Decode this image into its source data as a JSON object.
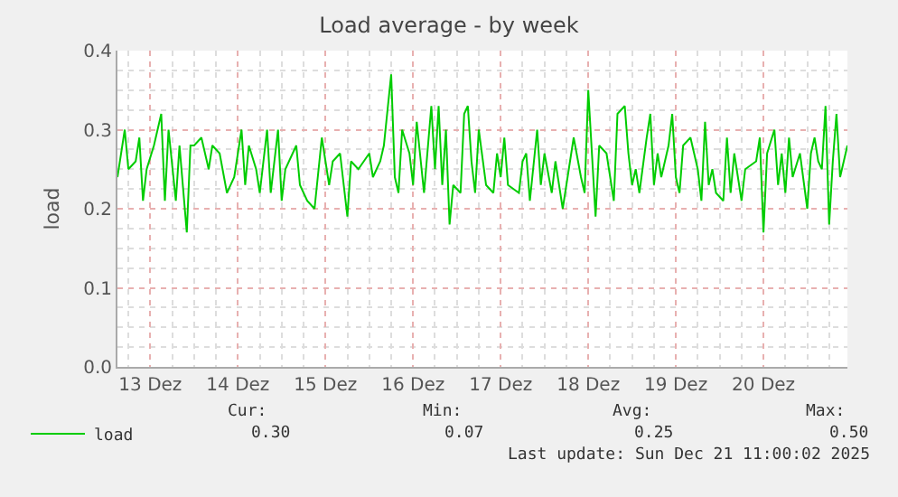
{
  "chart_data": {
    "type": "line",
    "title": "Load average - by week",
    "ylabel": "load",
    "x": [
      "2025-12-13T03:00",
      "2025-12-13T05:00",
      "2025-12-13T06:00",
      "2025-12-13T08:00",
      "2025-12-13T09:00",
      "2025-12-13T10:00",
      "2025-12-13T11:00",
      "2025-12-13T13:00",
      "2025-12-13T15:00",
      "2025-12-13T16:00",
      "2025-12-13T17:00",
      "2025-12-13T19:00",
      "2025-12-13T20:00",
      "2025-12-13T22:00",
      "2025-12-13T23:00",
      "2025-12-14T00:00",
      "2025-12-14T02:00",
      "2025-12-14T04:00",
      "2025-12-14T05:00",
      "2025-12-14T07:00",
      "2025-12-14T09:00",
      "2025-12-14T11:00",
      "2025-12-14T13:00",
      "2025-12-14T14:00",
      "2025-12-14T15:00",
      "2025-12-14T17:00",
      "2025-12-14T18:00",
      "2025-12-14T20:00",
      "2025-12-14T21:00",
      "2025-12-14T23:00",
      "2025-12-15T00:00",
      "2025-12-15T01:00",
      "2025-12-15T04:00",
      "2025-12-15T05:00",
      "2025-12-15T07:00",
      "2025-12-15T09:00",
      "2025-12-15T11:00",
      "2025-12-15T13:00",
      "2025-12-15T14:00",
      "2025-12-15T16:00",
      "2025-12-15T18:00",
      "2025-12-15T19:00",
      "2025-12-15T21:00",
      "2025-12-16T00:00",
      "2025-12-16T01:00",
      "2025-12-16T03:00",
      "2025-12-16T04:00",
      "2025-12-16T06:00",
      "2025-12-16T07:00",
      "2025-12-16T08:00",
      "2025-12-16T09:00",
      "2025-12-16T11:00",
      "2025-12-16T12:00",
      "2025-12-16T13:00",
      "2025-12-16T15:00",
      "2025-12-16T17:00",
      "2025-12-16T18:00",
      "2025-12-16T19:00",
      "2025-12-16T20:00",
      "2025-12-16T21:00",
      "2025-12-16T22:00",
      "2025-12-16T23:00",
      "2025-12-17T01:00",
      "2025-12-17T02:00",
      "2025-12-17T03:00",
      "2025-12-17T04:00",
      "2025-12-17T05:00",
      "2025-12-17T06:00",
      "2025-12-17T08:00",
      "2025-12-17T10:00",
      "2025-12-17T11:00",
      "2025-12-17T12:00",
      "2025-12-17T13:00",
      "2025-12-17T14:00",
      "2025-12-17T17:00",
      "2025-12-17T18:00",
      "2025-12-17T19:00",
      "2025-12-17T20:00",
      "2025-12-17T22:00",
      "2025-12-17T23:00",
      "2025-12-18T00:00",
      "2025-12-18T02:00",
      "2025-12-18T03:00",
      "2025-12-18T05:00",
      "2025-12-18T06:00",
      "2025-12-18T08:00",
      "2025-12-18T10:00",
      "2025-12-18T11:00",
      "2025-12-18T12:00",
      "2025-12-18T14:00",
      "2025-12-18T15:00",
      "2025-12-18T17:00",
      "2025-12-18T19:00",
      "2025-12-18T20:00",
      "2025-12-18T22:00",
      "2025-12-18T23:00",
      "2025-12-19T00:00",
      "2025-12-19T01:00",
      "2025-12-19T02:00",
      "2025-12-19T04:00",
      "2025-12-19T05:00",
      "2025-12-19T06:00",
      "2025-12-19T07:00",
      "2025-12-19T08:00",
      "2025-12-19T10:00",
      "2025-12-19T11:00",
      "2025-12-19T12:00",
      "2025-12-19T13:00",
      "2025-12-19T14:00",
      "2025-12-19T16:00",
      "2025-12-19T18:00",
      "2025-12-19T19:00",
      "2025-12-19T20:00",
      "2025-12-19T21:00",
      "2025-12-19T22:00",
      "2025-12-19T23:00",
      "2025-12-20T01:00",
      "2025-12-20T02:00",
      "2025-12-20T03:00",
      "2025-12-20T04:00",
      "2025-12-20T06:00",
      "2025-12-20T07:00",
      "2025-12-20T10:00",
      "2025-12-20T11:00",
      "2025-12-20T12:00",
      "2025-12-20T13:00",
      "2025-12-20T15:00",
      "2025-12-20T16:00",
      "2025-12-20T17:00",
      "2025-12-20T18:00",
      "2025-12-20T19:00",
      "2025-12-20T20:00",
      "2025-12-20T22:00",
      "2025-12-21T00:00",
      "2025-12-21T01:00",
      "2025-12-21T02:00",
      "2025-12-21T03:00",
      "2025-12-21T04:00",
      "2025-12-21T05:00",
      "2025-12-21T06:00",
      "2025-12-21T07:00",
      "2025-12-21T08:00",
      "2025-12-21T09:00",
      "2025-12-21T11:00"
    ],
    "series": [
      {
        "name": "load",
        "color": "#00cc00",
        "values": [
          0.24,
          0.3,
          0.25,
          0.26,
          0.29,
          0.21,
          0.25,
          0.28,
          0.32,
          0.21,
          0.3,
          0.21,
          0.28,
          0.17,
          0.28,
          0.28,
          0.29,
          0.25,
          0.28,
          0.27,
          0.22,
          0.24,
          0.3,
          0.23,
          0.28,
          0.25,
          0.22,
          0.3,
          0.22,
          0.3,
          0.21,
          0.25,
          0.28,
          0.23,
          0.21,
          0.2,
          0.29,
          0.23,
          0.26,
          0.27,
          0.19,
          0.26,
          0.25,
          0.27,
          0.24,
          0.26,
          0.28,
          0.37,
          0.24,
          0.22,
          0.3,
          0.27,
          0.23,
          0.31,
          0.22,
          0.33,
          0.25,
          0.33,
          0.23,
          0.3,
          0.18,
          0.23,
          0.22,
          0.32,
          0.33,
          0.26,
          0.22,
          0.3,
          0.23,
          0.22,
          0.27,
          0.24,
          0.29,
          0.23,
          0.22,
          0.26,
          0.27,
          0.21,
          0.3,
          0.23,
          0.27,
          0.22,
          0.26,
          0.2,
          0.23,
          0.29,
          0.24,
          0.22,
          0.35,
          0.19,
          0.28,
          0.27,
          0.21,
          0.32,
          0.33,
          0.27,
          0.23,
          0.25,
          0.22,
          0.29,
          0.32,
          0.23,
          0.27,
          0.24,
          0.28,
          0.32,
          0.24,
          0.22,
          0.28,
          0.29,
          0.25,
          0.21,
          0.31,
          0.23,
          0.25,
          0.22,
          0.21,
          0.29,
          0.22,
          0.27,
          0.21,
          0.25,
          0.26,
          0.29,
          0.17,
          0.27,
          0.3,
          0.23,
          0.27,
          0.22,
          0.29,
          0.24,
          0.27,
          0.2,
          0.27,
          0.29,
          0.26,
          0.25,
          0.33,
          0.18,
          0.26,
          0.32,
          0.24,
          0.28
        ]
      }
    ],
    "xlim": [
      "2025-12-13T03:00",
      "2025-12-21T11:00"
    ],
    "xticks": [
      {
        "value": "2025-12-13T12:00",
        "label": "13 Dez"
      },
      {
        "value": "2025-12-14T12:00",
        "label": "14 Dez"
      },
      {
        "value": "2025-12-15T12:00",
        "label": "15 Dez"
      },
      {
        "value": "2025-12-16T12:00",
        "label": "16 Dez"
      },
      {
        "value": "2025-12-17T12:00",
        "label": "17 Dez"
      },
      {
        "value": "2025-12-18T12:00",
        "label": "18 Dez"
      },
      {
        "value": "2025-12-19T12:00",
        "label": "19 Dez"
      },
      {
        "value": "2025-12-20T12:00",
        "label": "20 Dez"
      }
    ],
    "ylim": [
      0,
      0.4
    ],
    "yticks": [
      {
        "value": 0,
        "label": "0.0"
      },
      {
        "value": 0.1,
        "label": "0.1"
      },
      {
        "value": 0.2,
        "label": "0.2"
      },
      {
        "value": 0.3,
        "label": "0.3"
      },
      {
        "value": 0.4,
        "label": "0.4"
      }
    ],
    "grid": true,
    "legend": "bottom left",
    "marker": "none",
    "line_style": "solid",
    "annotations": [
      "Cur:",
      "Min:",
      "Avg:",
      "Max:",
      "0.30",
      "0.07",
      "0.25",
      "0.50",
      "Last update: Sun Dec 21 11:00:02 2025"
    ]
  }
}
